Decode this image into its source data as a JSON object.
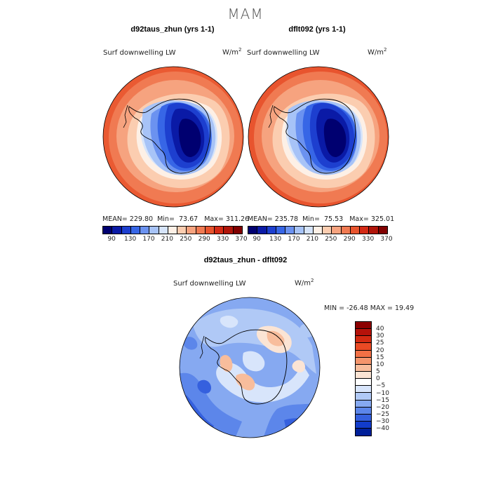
{
  "season": "MAM",
  "panels": [
    {
      "title": "d92taus_zhun (yrs 1-1)",
      "variable": "Surf downwelling LW",
      "units": "W/m",
      "units_exp": "2",
      "mean_label": "MEAN=",
      "mean": "229.80",
      "min_label": "Min=",
      "min": "73.67",
      "max_label": "Max=",
      "max": "311.26"
    },
    {
      "title": "dflt092 (yrs 1-1)",
      "variable": "Surf downwelling LW",
      "units": "W/m",
      "units_exp": "2",
      "mean_label": "MEAN=",
      "mean": "235.78",
      "min_label": "Min=",
      "min": "75.53",
      "max_label": "Max=",
      "max": "325.01"
    }
  ],
  "diff_panel": {
    "title": "d92taus_zhun - dflt092",
    "variable": "Surf downwelling LW",
    "units": "W/m",
    "units_exp": "2",
    "stats": "MIN = -26.48  MAX =  19.49"
  },
  "top_colorbar": {
    "colors": [
      "#000070",
      "#0a1aa6",
      "#1d3fcf",
      "#3766e6",
      "#6b92f0",
      "#a7c3f7",
      "#d6e4fa",
      "#fdf0e6",
      "#fbcdb0",
      "#f6a37f",
      "#f07a52",
      "#e8542e",
      "#d42a15",
      "#b0150a",
      "#800000"
    ],
    "ticks": [
      "90",
      "130",
      "170",
      "210",
      "250",
      "290",
      "330",
      "370"
    ]
  },
  "diff_colorbar": {
    "levels_desc": [
      "40",
      "30",
      "25",
      "20",
      "15",
      "10",
      "5",
      "0",
      "-5",
      "-10",
      "-15",
      "-20",
      "-25",
      "-30",
      "-40"
    ],
    "colors_top_to_bottom": [
      "#8c0000",
      "#b5120a",
      "#d32a12",
      "#ea4a24",
      "#f27045",
      "#f5956c",
      "#f8bd9c",
      "#fbe4d4",
      "#ffffff",
      "#d8e5fb",
      "#b0c9f6",
      "#86a9f1",
      "#5c86ea",
      "#3560de",
      "#123ccb",
      "#001f99"
    ]
  },
  "chart_data": [
    {
      "type": "map",
      "projection": "south polar stereographic",
      "title": "d92taus_zhun (yrs 1-1)",
      "variable": "Surf downwelling LW",
      "units": "W/m2",
      "mean": 229.8,
      "min": 73.67,
      "max": 311.26,
      "contour_levels": [
        90,
        130,
        170,
        210,
        250,
        290,
        330,
        370
      ]
    },
    {
      "type": "map",
      "projection": "south polar stereographic",
      "title": "dflt092 (yrs 1-1)",
      "variable": "Surf downwelling LW",
      "units": "W/m2",
      "mean": 235.78,
      "min": 75.53,
      "max": 325.01,
      "contour_levels": [
        90,
        130,
        170,
        210,
        250,
        290,
        330,
        370
      ]
    },
    {
      "type": "map",
      "projection": "south polar stereographic",
      "title": "d92taus_zhun - dflt092",
      "variable": "Surf downwelling LW",
      "units": "W/m2",
      "min": -26.48,
      "max": 19.49,
      "contour_levels": [
        -40,
        -30,
        -25,
        -20,
        -15,
        -10,
        -5,
        0,
        5,
        10,
        15,
        20,
        25,
        30,
        40
      ]
    }
  ]
}
